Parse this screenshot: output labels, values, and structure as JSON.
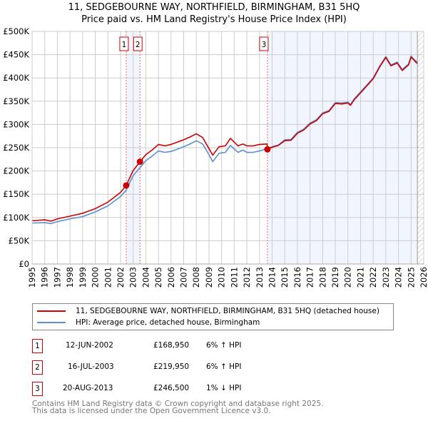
{
  "chart_data": {
    "type": "line",
    "title": "11, SEDGEBOURNE WAY, NORTHFIELD, BIRMINGHAM, B31 5HQ",
    "subtitle": "Price paid vs. HM Land Registry's House Price Index (HPI)",
    "xlim": [
      1995,
      2026
    ],
    "ylim": [
      0,
      500000
    ],
    "y_ticks": [
      {
        "v": 0,
        "label": "£0"
      },
      {
        "v": 50000,
        "label": "£50K"
      },
      {
        "v": 100000,
        "label": "£100K"
      },
      {
        "v": 150000,
        "label": "£150K"
      },
      {
        "v": 200000,
        "label": "£200K"
      },
      {
        "v": 250000,
        "label": "£250K"
      },
      {
        "v": 300000,
        "label": "£300K"
      },
      {
        "v": 350000,
        "label": "£350K"
      },
      {
        "v": 400000,
        "label": "£400K"
      },
      {
        "v": 450000,
        "label": "£450K"
      },
      {
        "v": 500000,
        "label": "£500K"
      }
    ],
    "x_ticks": [
      "1995",
      "1996",
      "1997",
      "1998",
      "1999",
      "2000",
      "2001",
      "2002",
      "2003",
      "2004",
      "2005",
      "2006",
      "2007",
      "2008",
      "2009",
      "2010",
      "2011",
      "2012",
      "2013",
      "2014",
      "2015",
      "2016",
      "2017",
      "2018",
      "2019",
      "2020",
      "2021",
      "2022",
      "2023",
      "2024",
      "2025",
      "2026"
    ],
    "grid": true,
    "shaded_ranges": [
      [
        2002.45,
        2003.54
      ],
      [
        2013.63,
        2025.5
      ]
    ],
    "hatched_from": 2025.5,
    "series": [
      {
        "name": "11, SEDGEBOURNE WAY, NORTHFIELD, BIRMINGHAM, B31 5HQ (detached house)",
        "color": "#cc0000",
        "points": [
          [
            1995,
            93000
          ],
          [
            1996,
            95000
          ],
          [
            1996.5,
            92000
          ],
          [
            1997,
            97000
          ],
          [
            1998,
            103000
          ],
          [
            1999,
            109000
          ],
          [
            2000,
            119000
          ],
          [
            2001,
            133000
          ],
          [
            2002,
            154000
          ],
          [
            2002.45,
            168950
          ],
          [
            2003,
            201000
          ],
          [
            2003.54,
            219950
          ],
          [
            2004,
            235000
          ],
          [
            2004.5,
            245000
          ],
          [
            2005,
            257000
          ],
          [
            2005.5,
            254000
          ],
          [
            2006,
            257000
          ],
          [
            2007,
            267000
          ],
          [
            2007.5,
            273000
          ],
          [
            2008,
            280000
          ],
          [
            2008.5,
            272000
          ],
          [
            2009,
            248000
          ],
          [
            2009.3,
            234000
          ],
          [
            2009.8,
            252000
          ],
          [
            2010.3,
            254000
          ],
          [
            2010.7,
            270000
          ],
          [
            2011.3,
            254000
          ],
          [
            2011.7,
            258000
          ],
          [
            2012,
            254000
          ],
          [
            2012.5,
            254000
          ],
          [
            2013,
            257000
          ],
          [
            2013.6,
            258000
          ],
          [
            2013.63,
            246500
          ],
          [
            2014,
            251000
          ],
          [
            2014.5,
            255000
          ],
          [
            2015,
            265000
          ],
          [
            2015.5,
            266000
          ],
          [
            2016,
            281000
          ],
          [
            2016.5,
            288000
          ],
          [
            2017,
            301000
          ],
          [
            2017.5,
            308000
          ],
          [
            2018,
            323000
          ],
          [
            2018.5,
            328000
          ],
          [
            2019,
            345000
          ],
          [
            2019.5,
            344000
          ],
          [
            2020,
            346000
          ],
          [
            2020.2,
            341000
          ],
          [
            2020.5,
            353000
          ],
          [
            2021,
            368000
          ],
          [
            2021.5,
            383000
          ],
          [
            2022,
            398000
          ],
          [
            2022.5,
            423000
          ],
          [
            2023,
            444000
          ],
          [
            2023.4,
            426000
          ],
          [
            2023.9,
            432000
          ],
          [
            2024.3,
            416000
          ],
          [
            2024.8,
            428000
          ],
          [
            2025,
            445000
          ],
          [
            2025.3,
            436000
          ],
          [
            2025.5,
            431000
          ]
        ]
      },
      {
        "name": "HPI: Average price, detached house, Birmingham",
        "color": "#5b8fd0",
        "points": [
          [
            1995,
            88000
          ],
          [
            1996,
            89000
          ],
          [
            1996.5,
            87000
          ],
          [
            1997,
            91000
          ],
          [
            1998,
            97000
          ],
          [
            1999,
            102000
          ],
          [
            2000,
            112000
          ],
          [
            2001,
            125000
          ],
          [
            2002,
            145000
          ],
          [
            2002.45,
            159000
          ],
          [
            2003,
            190000
          ],
          [
            2003.54,
            207000
          ],
          [
            2004,
            222000
          ],
          [
            2004.5,
            232000
          ],
          [
            2005,
            243000
          ],
          [
            2005.5,
            240000
          ],
          [
            2006,
            242000
          ],
          [
            2007,
            252000
          ],
          [
            2007.5,
            258000
          ],
          [
            2008,
            265000
          ],
          [
            2008.5,
            258000
          ],
          [
            2009,
            235000
          ],
          [
            2009.3,
            220000
          ],
          [
            2009.8,
            238000
          ],
          [
            2010.3,
            240000
          ],
          [
            2010.7,
            255000
          ],
          [
            2011.3,
            240000
          ],
          [
            2011.7,
            245000
          ],
          [
            2012,
            240000
          ],
          [
            2012.5,
            240000
          ],
          [
            2013,
            243000
          ],
          [
            2013.6,
            248000
          ],
          [
            2014,
            252000
          ],
          [
            2014.5,
            256000
          ],
          [
            2015,
            267000
          ],
          [
            2015.5,
            268000
          ],
          [
            2016,
            283000
          ],
          [
            2016.5,
            290000
          ],
          [
            2017,
            303000
          ],
          [
            2017.5,
            310000
          ],
          [
            2018,
            325000
          ],
          [
            2018.5,
            330000
          ],
          [
            2019,
            347000
          ],
          [
            2019.5,
            346000
          ],
          [
            2020,
            348000
          ],
          [
            2020.2,
            343000
          ],
          [
            2020.5,
            355000
          ],
          [
            2021,
            370000
          ],
          [
            2021.5,
            385000
          ],
          [
            2022,
            400000
          ],
          [
            2022.5,
            425000
          ],
          [
            2023,
            446000
          ],
          [
            2023.4,
            428000
          ],
          [
            2023.9,
            434000
          ],
          [
            2024.3,
            418000
          ],
          [
            2024.8,
            430000
          ],
          [
            2025,
            447000
          ],
          [
            2025.3,
            438000
          ],
          [
            2025.5,
            434000
          ]
        ]
      }
    ],
    "markers": [
      {
        "label": "1",
        "x": 2002.45,
        "y": 168950
      },
      {
        "label": "2",
        "x": 2003.54,
        "y": 219950
      },
      {
        "label": "3",
        "x": 2013.63,
        "y": 246500
      }
    ]
  },
  "transactions": [
    {
      "num": "1",
      "date": "12-JUN-2002",
      "price": "£168,950",
      "hpi": "6% ↑ HPI"
    },
    {
      "num": "2",
      "date": "16-JUL-2003",
      "price": "£219,950",
      "hpi": "6% ↑ HPI"
    },
    {
      "num": "3",
      "date": "20-AUG-2013",
      "price": "£246,500",
      "hpi": "1% ↓ HPI"
    }
  ],
  "footer": {
    "line1": "Contains HM Land Registry data © Crown copyright and database right 2025.",
    "line2": "This data is licensed under the Open Government Licence v3.0."
  }
}
